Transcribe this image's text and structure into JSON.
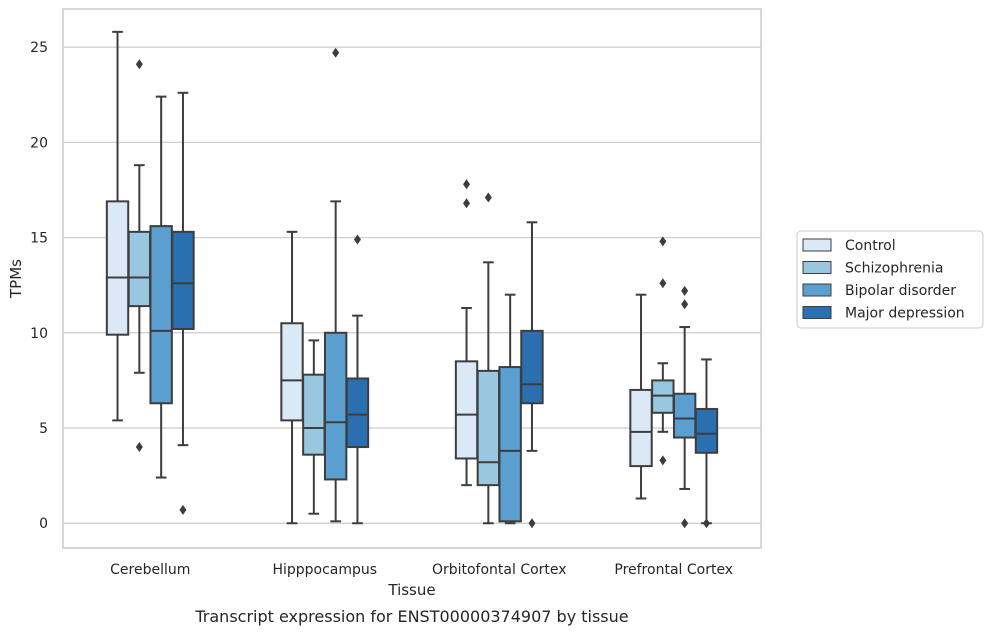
{
  "chart_data": {
    "type": "box",
    "title": "Transcript expression for ENST00000374907 by tissue",
    "xlabel": "Tissue",
    "ylabel": "TPMs",
    "ylim": [
      -1.3,
      27.0
    ],
    "yticks": [
      0,
      5,
      10,
      15,
      20,
      25
    ],
    "grid": true,
    "legend_position": "right",
    "categories": [
      "Cerebellum",
      "Hipppocampus",
      "Orbitofontal Cortex",
      "Prefrontal Cortex"
    ],
    "series": [
      {
        "name": "Control",
        "color": "#dbe9f6",
        "boxes": [
          {
            "whislo": 5.4,
            "q1": 9.9,
            "med": 12.9,
            "q3": 16.9,
            "whishi": 25.8,
            "fliers": []
          },
          {
            "whislo": 0.0,
            "q1": 5.4,
            "med": 7.5,
            "q3": 10.5,
            "whishi": 15.3,
            "fliers": []
          },
          {
            "whislo": 2.0,
            "q1": 3.4,
            "med": 5.7,
            "q3": 8.5,
            "whishi": 11.3,
            "fliers": [
              16.8,
              17.8
            ]
          },
          {
            "whislo": 1.3,
            "q1": 3.0,
            "med": 4.8,
            "q3": 7.0,
            "whishi": 12.0,
            "fliers": []
          }
        ]
      },
      {
        "name": "Schizophrenia",
        "color": "#9ac7e0",
        "boxes": [
          {
            "whislo": 7.9,
            "q1": 11.4,
            "med": 12.9,
            "q3": 15.3,
            "whishi": 18.8,
            "fliers": [
              4.0,
              24.1
            ]
          },
          {
            "whislo": 0.5,
            "q1": 3.6,
            "med": 5.0,
            "q3": 7.8,
            "whishi": 9.6,
            "fliers": []
          },
          {
            "whislo": 0.0,
            "q1": 2.0,
            "med": 3.2,
            "q3": 8.0,
            "whishi": 13.7,
            "fliers": [
              17.1
            ]
          },
          {
            "whislo": 4.8,
            "q1": 5.8,
            "med": 6.7,
            "q3": 7.5,
            "whishi": 8.4,
            "fliers": [
              3.3,
              12.6,
              14.8
            ]
          }
        ]
      },
      {
        "name": "Bipolar disorder",
        "color": "#5a9fcf",
        "boxes": [
          {
            "whislo": 2.4,
            "q1": 6.3,
            "med": 10.1,
            "q3": 15.6,
            "whishi": 22.4,
            "fliers": []
          },
          {
            "whislo": 0.1,
            "q1": 2.3,
            "med": 5.3,
            "q3": 10.0,
            "whishi": 16.9,
            "fliers": [
              24.7
            ]
          },
          {
            "whislo": 0.0,
            "q1": 0.1,
            "med": 3.8,
            "q3": 8.2,
            "whishi": 12.0,
            "fliers": []
          },
          {
            "whislo": 1.8,
            "q1": 4.5,
            "med": 5.5,
            "q3": 6.8,
            "whishi": 10.3,
            "fliers": [
              0.0,
              11.5,
              12.2
            ]
          }
        ]
      },
      {
        "name": "Major depression",
        "color": "#2a6fb0",
        "boxes": [
          {
            "whislo": 4.1,
            "q1": 10.2,
            "med": 12.6,
            "q3": 15.3,
            "whishi": 22.6,
            "fliers": [
              0.7
            ]
          },
          {
            "whislo": 0.0,
            "q1": 4.0,
            "med": 5.7,
            "q3": 7.6,
            "whishi": 10.9,
            "fliers": [
              14.9
            ]
          },
          {
            "whislo": 3.8,
            "q1": 6.3,
            "med": 7.3,
            "q3": 10.1,
            "whishi": 15.8,
            "fliers": [
              0.0
            ]
          },
          {
            "whislo": 0.0,
            "q1": 3.7,
            "med": 4.7,
            "q3": 6.0,
            "whishi": 8.6,
            "fliers": [
              0.0
            ]
          }
        ]
      }
    ]
  }
}
